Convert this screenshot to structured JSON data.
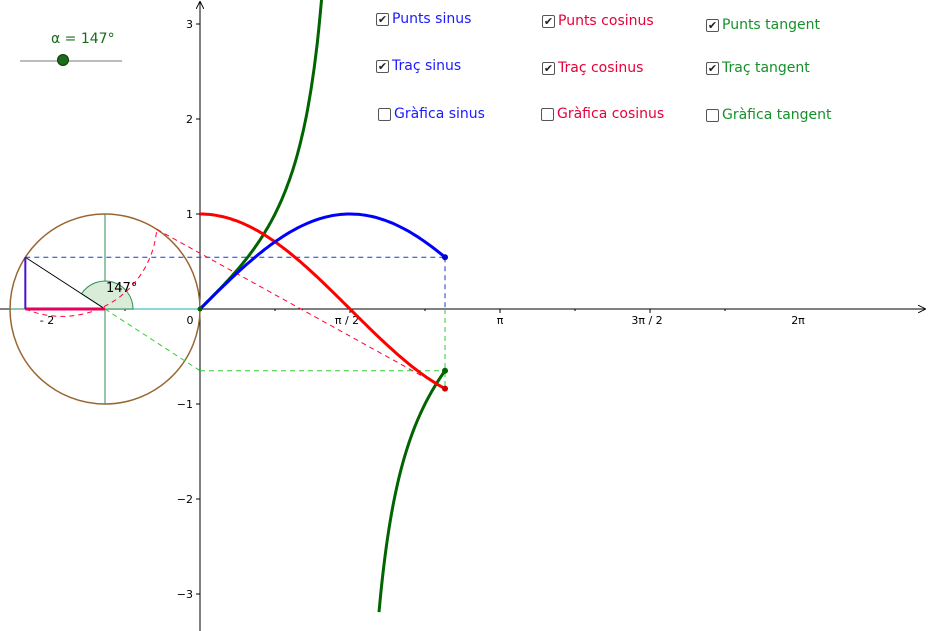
{
  "slider": {
    "label": "α = 147°",
    "value_deg": 147,
    "min_deg": 0,
    "max_deg": 360
  },
  "axes": {
    "x_labels": [
      "π / 2",
      "π",
      "3π / 2",
      "2π"
    ],
    "y_labels": [
      "3",
      "2",
      "1",
      "−1",
      "−2",
      "−3"
    ],
    "origin_label": "0",
    "neg_x_label": "- 2"
  },
  "angle_label": "147°",
  "checkboxes": [
    {
      "id": "punts-sinus",
      "label": "Punts sinus",
      "checked": true,
      "color": "#1a1aff"
    },
    {
      "id": "punts-cosinus",
      "label": "Punts cosinus",
      "checked": true,
      "color": "#e6003a"
    },
    {
      "id": "punts-tangent",
      "label": "Punts tangent",
      "checked": true,
      "color": "#15912a"
    },
    {
      "id": "trac-sinus",
      "label": "Traç sinus",
      "checked": true,
      "color": "#1a1aff"
    },
    {
      "id": "trac-cosinus",
      "label": "Traç cosinus",
      "checked": true,
      "color": "#e6003a"
    },
    {
      "id": "trac-tangent",
      "label": "Traç tangent",
      "checked": true,
      "color": "#15912a"
    },
    {
      "id": "grafica-sinus",
      "label": "Gràfica sinus",
      "checked": false,
      "color": "#1a1aff"
    },
    {
      "id": "grafica-cosinus",
      "label": "Gràfica cosinus",
      "checked": false,
      "color": "#e6003a"
    },
    {
      "id": "grafica-tangent",
      "label": "Gràfica tangent",
      "checked": false,
      "color": "#15912a"
    }
  ],
  "colors": {
    "sine": "#0000ff",
    "cosine": "#ff0000",
    "tangent": "#006400",
    "circle": "#996633",
    "circle_axes": "#2e8b57",
    "angle_fill": "#d8ecd8",
    "cos_segment": "#e6005c",
    "sin_segment": "#4b0fd1",
    "dashed_tan": "#33cc33"
  }
}
